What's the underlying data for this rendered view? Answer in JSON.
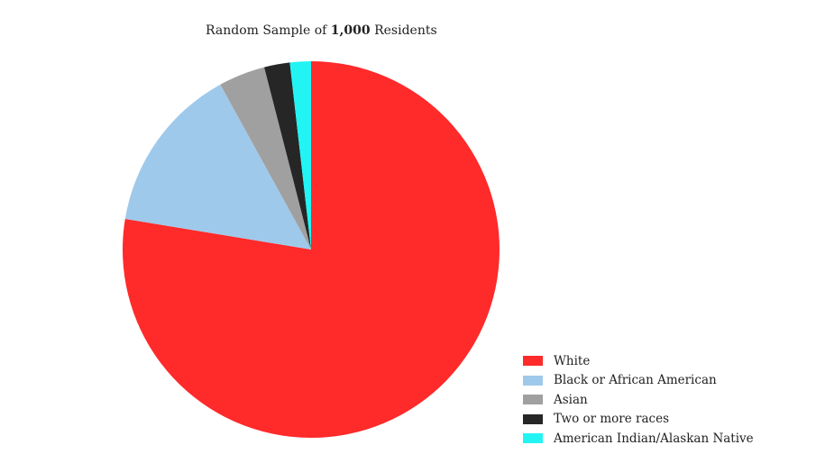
{
  "chart_data": {
    "type": "pie",
    "title_prefix": "Random Sample of ",
    "title_bold": "1,000",
    "title_suffix": " Residents",
    "start_angle_deg": 0,
    "direction": "clockwise",
    "slices": [
      {
        "label": "White",
        "value": 776,
        "color": "#ff2a2a"
      },
      {
        "label": "Black or African American",
        "value": 144,
        "color": "#9fc9eb"
      },
      {
        "label": "Asian",
        "value": 40,
        "color": "#a0a0a0"
      },
      {
        "label": "Two or more races",
        "value": 22,
        "color": "#262626"
      },
      {
        "label": "American Indian/Alaskan Native",
        "value": 18,
        "color": "#22f4f4"
      }
    ],
    "legend_position": "bottom-right"
  }
}
